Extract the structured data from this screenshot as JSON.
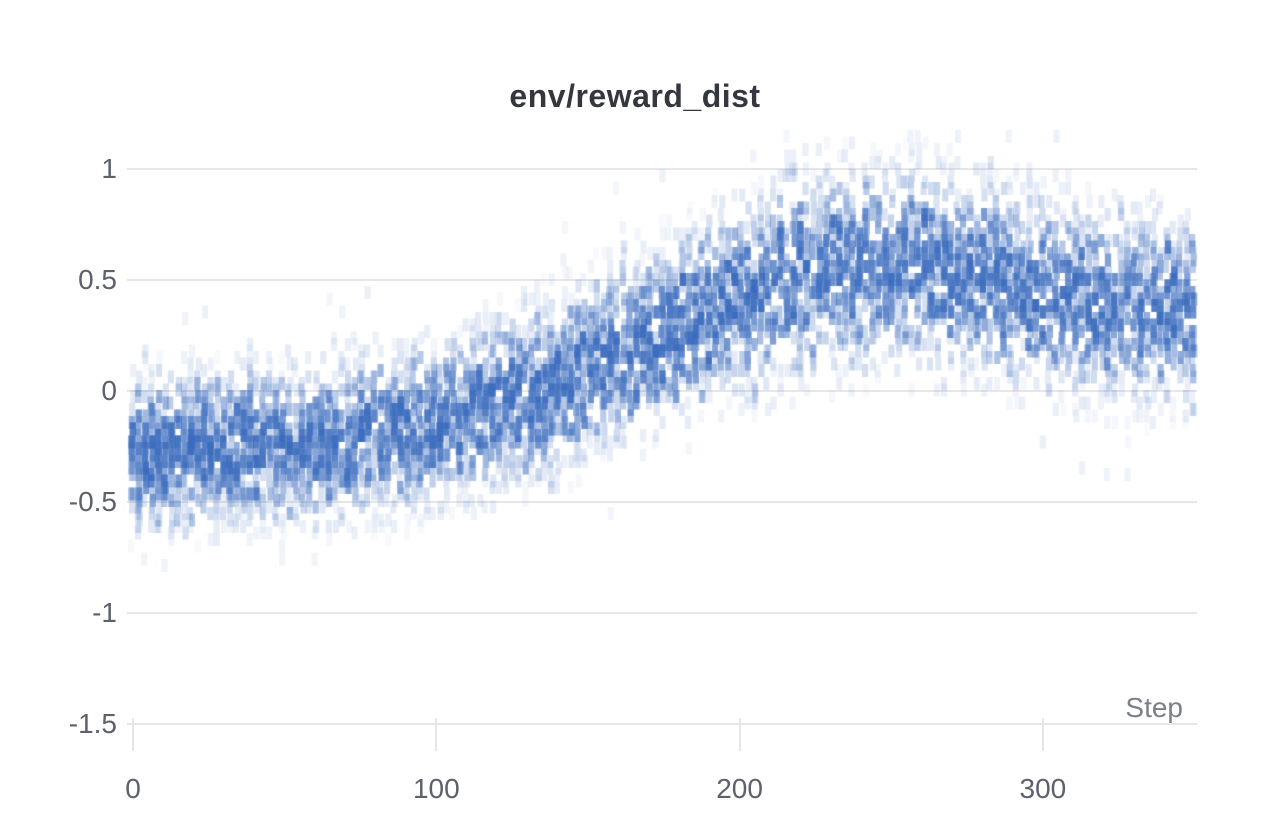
{
  "chart_data": {
    "type": "heatmap",
    "title": "env/reward_dist",
    "xlabel": "Step",
    "ylabel": "",
    "x_ticks": [
      0,
      100,
      200,
      300
    ],
    "y_tick_labels": [
      "1",
      "0.5",
      "0",
      "-0.5",
      "-1",
      "-1.5"
    ],
    "y_tick_values": [
      1,
      0.5,
      0,
      -0.5,
      -1,
      -1.5
    ],
    "xlim": [
      0,
      351
    ],
    "ylim": [
      -1.5,
      1.18
    ],
    "grid": "horizontal-only",
    "legend": "none",
    "value_range_observed": [
      -0.78,
      1.15
    ],
    "colors": {
      "cell_base": "#3a6bbd",
      "gridline": "#e7e7ea",
      "tick_label": "#5c616c",
      "axis_title": "#7a7f8a",
      "title": "#34383e",
      "background": "#ffffff"
    },
    "density_profile": [
      {
        "step": 0,
        "mean": -0.27,
        "sigma": 0.2
      },
      {
        "step": 30,
        "mean": -0.26,
        "sigma": 0.2
      },
      {
        "step": 60,
        "mean": -0.24,
        "sigma": 0.2
      },
      {
        "step": 90,
        "mean": -0.18,
        "sigma": 0.21
      },
      {
        "step": 110,
        "mean": -0.1,
        "sigma": 0.21
      },
      {
        "step": 130,
        "mean": -0.02,
        "sigma": 0.22
      },
      {
        "step": 150,
        "mean": 0.1,
        "sigma": 0.23
      },
      {
        "step": 170,
        "mean": 0.22,
        "sigma": 0.23
      },
      {
        "step": 190,
        "mean": 0.36,
        "sigma": 0.24
      },
      {
        "step": 210,
        "mean": 0.48,
        "sigma": 0.26
      },
      {
        "step": 230,
        "mean": 0.55,
        "sigma": 0.26
      },
      {
        "step": 250,
        "mean": 0.56,
        "sigma": 0.26
      },
      {
        "step": 270,
        "mean": 0.54,
        "sigma": 0.25
      },
      {
        "step": 290,
        "mean": 0.47,
        "sigma": 0.25
      },
      {
        "step": 310,
        "mean": 0.41,
        "sigma": 0.24
      },
      {
        "step": 330,
        "mean": 0.38,
        "sigma": 0.24
      },
      {
        "step": 351,
        "mean": 0.35,
        "sigma": 0.24
      }
    ]
  }
}
